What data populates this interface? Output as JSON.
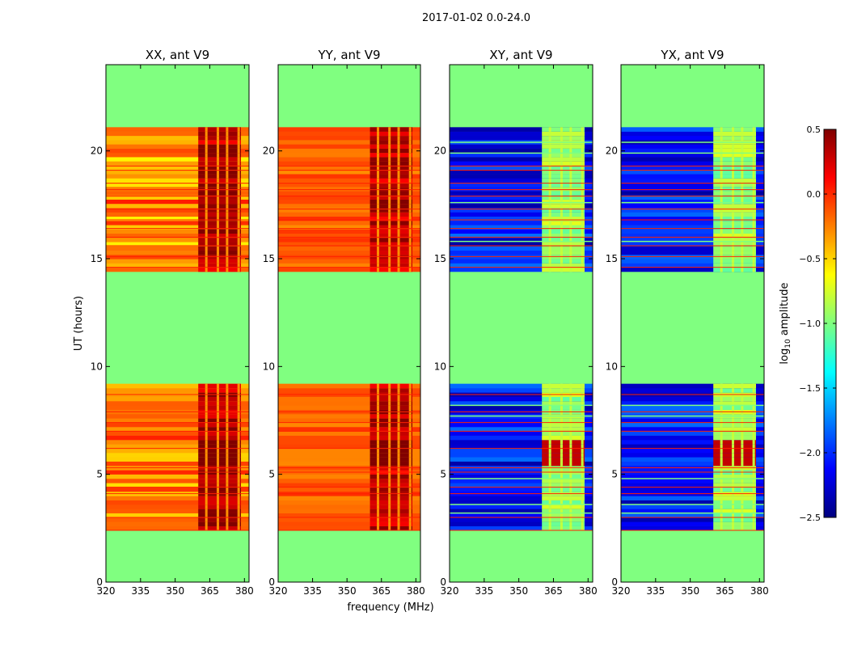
{
  "figure": {
    "suptitle": "2017-01-02 0.0-24.0",
    "ylabel": "UT (hours)",
    "xlabel": "frequency (MHz)"
  },
  "colorbar": {
    "label": "log10 amplitude",
    "label_base": "log",
    "label_sub": "10",
    "label_rest": " amplitude",
    "range": [
      -2.5,
      0.5
    ],
    "ticks": [
      0.5,
      0.0,
      -0.5,
      -1.0,
      -1.5,
      -2.0,
      -2.5
    ],
    "tick_labels": [
      "0.5",
      "0.0",
      "−0.5",
      "−1.0",
      "−1.5",
      "−2.0",
      "−2.5"
    ],
    "colormap": "jet",
    "stops": [
      "#00007f",
      "#0000ff",
      "#007fff",
      "#00ffff",
      "#7fff7f",
      "#ffff00",
      "#ff7f00",
      "#ff0000",
      "#7f0000"
    ]
  },
  "chart_data": {
    "type": "heatmap",
    "x_range": [
      320,
      382
    ],
    "y_range": [
      0,
      24
    ],
    "x_ticks": [
      320,
      335,
      350,
      365,
      380
    ],
    "x_tick_labels": [
      "320",
      "335",
      "350",
      "365",
      "380"
    ],
    "y_ticks": [
      0,
      5,
      10,
      15,
      20
    ],
    "y_tick_labels": [
      "0",
      "5",
      "10",
      "15",
      "20"
    ],
    "fill_value": -1.0,
    "observing_blocks_hours": [
      [
        2.4,
        9.2
      ],
      [
        14.4,
        21.1
      ]
    ],
    "rfi_band_mhz": [
      360,
      382
    ],
    "panels": [
      {
        "title": "XX, ant V9",
        "base_low": -0.6,
        "base_high": 0.05,
        "rfi_value": 0.35,
        "flare_value": 0.5
      },
      {
        "title": "YY, ant V9",
        "base_low": -0.3,
        "base_high": 0.0,
        "rfi_value": 0.3,
        "flare_value": 0.5
      },
      {
        "title": "XY, ant V9",
        "base_low": -2.4,
        "base_high": -1.8,
        "rfi_value": -0.9,
        "flare_value": 0.3
      },
      {
        "title": "YX, ant V9",
        "base_low": -2.4,
        "base_high": -1.8,
        "rfi_value": -0.9,
        "flare_value": 0.3
      }
    ]
  }
}
